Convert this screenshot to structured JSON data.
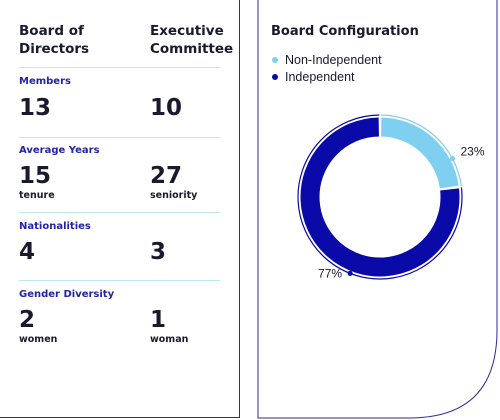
{
  "left": {
    "headers": [
      "Board of\nDirectors",
      "Executive\nCommittee"
    ],
    "sections": [
      {
        "label": "Members",
        "board": {
          "value": "13",
          "unit": ""
        },
        "exec": {
          "value": "10",
          "unit": ""
        }
      },
      {
        "label": "Average Years",
        "board": {
          "value": "15",
          "unit": "tenure"
        },
        "exec": {
          "value": "27",
          "unit": "seniority"
        }
      },
      {
        "label": "Nationalities",
        "board": {
          "value": "4",
          "unit": ""
        },
        "exec": {
          "value": "3",
          "unit": ""
        }
      },
      {
        "label": "Gender Diversity",
        "board": {
          "value": "2",
          "unit": "women"
        },
        "exec": {
          "value": "1",
          "unit": "woman"
        }
      }
    ]
  },
  "chart_data": {
    "type": "pie",
    "title": "Board Configuration",
    "categories": [
      "Non-Independent",
      "Independent"
    ],
    "values": [
      23,
      77
    ],
    "labels": [
      "23%",
      "77%"
    ],
    "colors": [
      "#7fd0f0",
      "#0a0aa8"
    ]
  },
  "colors": {
    "accent": "#0a0aa8",
    "light": "#7fd0f0",
    "border": "#2a2aa8",
    "divider": "#bfe6f2"
  }
}
